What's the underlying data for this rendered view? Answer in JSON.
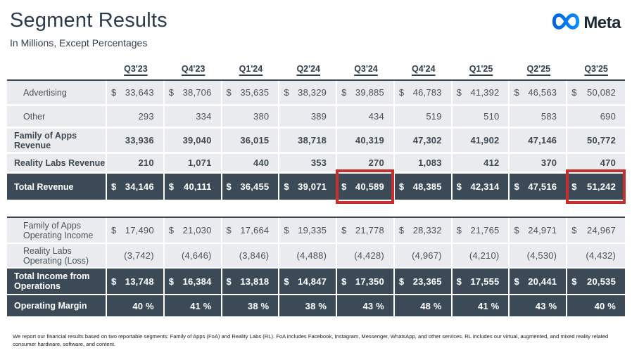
{
  "header": {
    "title": "Segment Results",
    "subtitle": "In Millions, Except Percentages",
    "logo_text": "Meta"
  },
  "colors": {
    "dark_row_bg": "#3b4a56",
    "light_row_bg": "#e9ebee",
    "highlight_red": "#c5302e",
    "title_color": "#2b3b4d",
    "meta_blue_start": "#0064e0",
    "meta_blue_end": "#0d8bff"
  },
  "dollar_sign": "$",
  "columns": [
    "Q3'23",
    "Q4'23",
    "Q1'24",
    "Q2'24",
    "Q3'24",
    "Q4'24",
    "Q1'25",
    "Q2'25",
    "Q3'25"
  ],
  "revenue_table": {
    "rows": [
      {
        "label": "Advertising",
        "style": "light",
        "indent": true,
        "bold": false,
        "dollar": true,
        "values": [
          "33,643",
          "38,706",
          "35,635",
          "38,329",
          "39,885",
          "46,783",
          "41,392",
          "46,563",
          "50,082"
        ]
      },
      {
        "label": "Other",
        "style": "light",
        "indent": true,
        "bold": false,
        "dollar": false,
        "values": [
          "293",
          "334",
          "380",
          "389",
          "434",
          "519",
          "510",
          "583",
          "690"
        ]
      },
      {
        "label": "Family of Apps Revenue",
        "style": "light",
        "indent": false,
        "bold": true,
        "dollar": false,
        "values": [
          "33,936",
          "39,040",
          "36,015",
          "38,718",
          "40,319",
          "47,302",
          "41,902",
          "47,146",
          "50,772"
        ]
      },
      {
        "label": "Reality Labs Revenue",
        "style": "light",
        "indent": false,
        "bold": true,
        "dollar": false,
        "values": [
          "210",
          "1,071",
          "440",
          "353",
          "270",
          "1,083",
          "412",
          "370",
          "470"
        ]
      },
      {
        "label": "Total Revenue",
        "style": "dark",
        "indent": false,
        "bold": true,
        "dollar": true,
        "values": [
          "34,146",
          "40,111",
          "36,455",
          "39,071",
          "40,589",
          "48,385",
          "42,314",
          "47,516",
          "51,242"
        ],
        "highlighted_columns": [
          4,
          8
        ]
      }
    ]
  },
  "income_table": {
    "rows": [
      {
        "label": "Family of Apps Operating Income",
        "style": "light",
        "indent": true,
        "bold": false,
        "dollar": true,
        "values": [
          "17,490",
          "21,030",
          "17,664",
          "19,335",
          "21,778",
          "28,332",
          "21,765",
          "24,971",
          "24,967"
        ]
      },
      {
        "label": "Reality Labs Operating (Loss)",
        "style": "light",
        "indent": true,
        "bold": false,
        "dollar": false,
        "values": [
          "(3,742)",
          "(4,646)",
          "(3,846)",
          "(4,488)",
          "(4,428)",
          "(4,967)",
          "(4,210)",
          "(4,530)",
          "(4,432)"
        ]
      },
      {
        "label": "Total Income from Operations",
        "style": "dark",
        "indent": false,
        "bold": true,
        "dollar": true,
        "values": [
          "13,748",
          "16,384",
          "13,818",
          "14,847",
          "17,350",
          "23,365",
          "17,555",
          "20,441",
          "20,535"
        ]
      },
      {
        "label": "Operating Margin",
        "style": "dark",
        "indent": false,
        "bold": true,
        "dollar": false,
        "values": [
          "40 %",
          "41 %",
          "38 %",
          "38 %",
          "43 %",
          "48 %",
          "41 %",
          "43 %",
          "40 %"
        ]
      }
    ]
  },
  "footnote": "We report our financial results based on two reportable segments: Family of Apps (FoA) and Reality Labs (RL). FoA includes Facebook, Instagram, Messenger, WhatsApp, and other services. RL includes our virtual, augmented, and mixed reality related consumer hardware, software, and content."
}
